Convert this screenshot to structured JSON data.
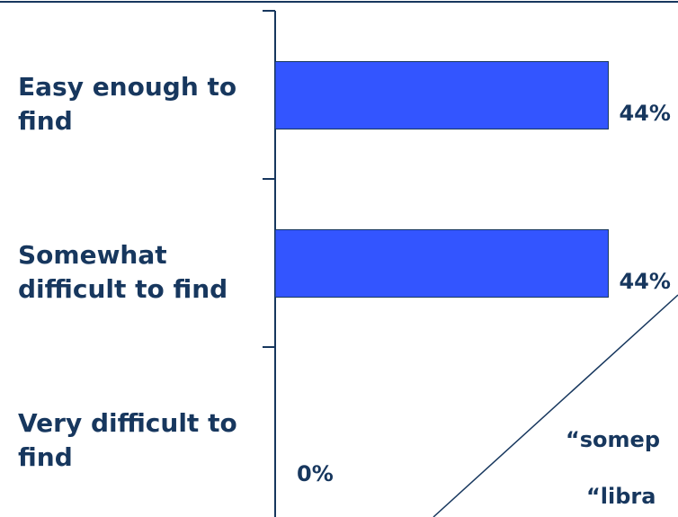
{
  "chart_data": {
    "type": "bar",
    "orientation": "horizontal",
    "categories": [
      "Easy enough to find",
      "Somewhat difficult to find",
      "Very difficult to find"
    ],
    "values": [
      44,
      44,
      0
    ],
    "value_labels": [
      "44%",
      "44%",
      "0%"
    ],
    "xlim": [
      0,
      100
    ],
    "grid": false,
    "legend": "none",
    "bar_color": "#3355ff",
    "bar_edge_color": "#17375e",
    "label_color": "#17375e",
    "callouts": [
      "“somep",
      "“libra"
    ]
  }
}
